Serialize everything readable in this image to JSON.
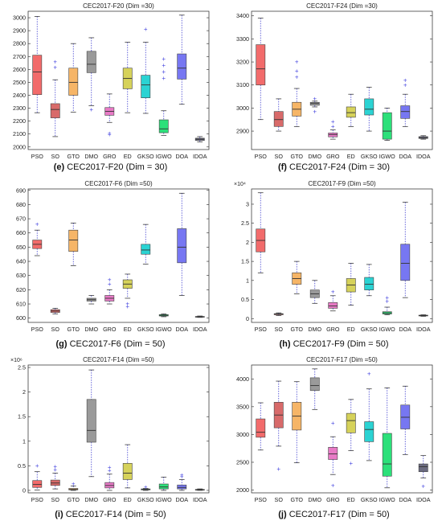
{
  "chart_data": [
    {
      "type": "box",
      "title": "CEC2017-F20 (Dim =30)",
      "caption": {
        "letter": "(e)",
        "text": "CEC2017-F20 (Dim = 30)"
      },
      "categories": [
        "PSO",
        "SO",
        "GTO",
        "DMO",
        "GRO",
        "ED",
        "GKSO",
        "IGWO",
        "DOA",
        "IDOA"
      ],
      "ylim": [
        1980,
        3050
      ],
      "yticks": [
        "2000",
        "2100",
        "2200",
        "2300",
        "2400",
        "2500",
        "2600",
        "2700",
        "2800",
        "2900",
        "3000"
      ],
      "ytick_values": [
        2000,
        2100,
        2200,
        2300,
        2400,
        2500,
        2600,
        2700,
        2800,
        2900,
        3000
      ],
      "exponent_label": "",
      "colors": [
        "#f26b6b",
        "#d86a6a",
        "#f6b567",
        "#9a9a9a",
        "#e87ac6",
        "#d6d25a",
        "#2bd3d3",
        "#2ce07a",
        "#7777f2",
        "#6b6b80"
      ],
      "boxes": [
        {
          "min": 2265,
          "q1": 2405,
          "median": 2580,
          "q3": 2710,
          "max": 3010,
          "outliers": []
        },
        {
          "min": 2080,
          "q1": 2225,
          "median": 2290,
          "q3": 2335,
          "max": 2520,
          "outliers": [
            2615,
            2660
          ]
        },
        {
          "min": 2270,
          "q1": 2400,
          "median": 2500,
          "q3": 2610,
          "max": 2800,
          "outliers": []
        },
        {
          "min": 2320,
          "q1": 2575,
          "median": 2640,
          "q3": 2740,
          "max": 2845,
          "outliers": [
            2290
          ]
        },
        {
          "min": 2190,
          "q1": 2245,
          "median": 2275,
          "q3": 2305,
          "max": 2410,
          "outliers": [
            2105,
            2095
          ]
        },
        {
          "min": 2265,
          "q1": 2450,
          "median": 2530,
          "q3": 2610,
          "max": 2810,
          "outliers": []
        },
        {
          "min": 2260,
          "q1": 2380,
          "median": 2480,
          "q3": 2555,
          "max": 2810,
          "outliers": [
            2910
          ]
        },
        {
          "min": 2090,
          "q1": 2110,
          "median": 2140,
          "q3": 2210,
          "max": 2280,
          "outliers": [
            2530,
            2580,
            2630,
            2680
          ]
        },
        {
          "min": 2330,
          "q1": 2525,
          "median": 2610,
          "q3": 2720,
          "max": 3020,
          "outliers": []
        },
        {
          "min": 2040,
          "q1": 2050,
          "median": 2060,
          "q3": 2068,
          "max": 2080,
          "outliers": []
        }
      ]
    },
    {
      "type": "box",
      "title": "CEC2017-F24 (Dim =30)",
      "caption": {
        "letter": "(f)",
        "text": "CEC2017-F24 (Dim = 30)"
      },
      "categories": [
        "PSO",
        "SO",
        "GTO",
        "DMO",
        "GRO",
        "ED",
        "GKSO",
        "IGWO",
        "DOA",
        "IDOA"
      ],
      "ylim": [
        2820,
        3420
      ],
      "yticks": [
        "2900",
        "3000",
        "3100",
        "3200",
        "3300",
        "3400"
      ],
      "ytick_values": [
        2900,
        3000,
        3100,
        3200,
        3300,
        3400
      ],
      "exponent_label": "",
      "colors": [
        "#f26b6b",
        "#d86a6a",
        "#f6b567",
        "#9a9a9a",
        "#e87ac6",
        "#d6d25a",
        "#2bd3d3",
        "#2ce07a",
        "#7777f2",
        "#6b6b80"
      ],
      "boxes": [
        {
          "min": 2950,
          "q1": 3100,
          "median": 3170,
          "q3": 3275,
          "max": 3390,
          "outliers": []
        },
        {
          "min": 2900,
          "q1": 2920,
          "median": 2950,
          "q3": 2985,
          "max": 3040,
          "outliers": []
        },
        {
          "min": 2920,
          "q1": 2965,
          "median": 2995,
          "q3": 3025,
          "max": 3085,
          "outliers": [
            3135,
            3160,
            3200
          ]
        },
        {
          "min": 3005,
          "q1": 3012,
          "median": 3020,
          "q3": 3025,
          "max": 3030,
          "outliers": [
            2985,
            3040
          ]
        },
        {
          "min": 2865,
          "q1": 2875,
          "median": 2885,
          "q3": 2892,
          "max": 2905,
          "outliers": [
            2920,
            2940
          ]
        },
        {
          "min": 2920,
          "q1": 2960,
          "median": 2980,
          "q3": 3005,
          "max": 3060,
          "outliers": []
        },
        {
          "min": 2900,
          "q1": 2970,
          "median": 2995,
          "q3": 3040,
          "max": 3090,
          "outliers": []
        },
        {
          "min": 2860,
          "q1": 2865,
          "median": 2900,
          "q3": 2980,
          "max": 3000,
          "outliers": []
        },
        {
          "min": 2920,
          "q1": 2955,
          "median": 2985,
          "q3": 3010,
          "max": 3060,
          "outliers": [
            3100,
            3120
          ]
        },
        {
          "min": 2865,
          "q1": 2868,
          "median": 2872,
          "q3": 2876,
          "max": 2880,
          "outliers": []
        }
      ]
    },
    {
      "type": "box",
      "title": "CEC2017-F6 (Dim =50)",
      "caption": {
        "letter": "(g)",
        "text": "CEC2017-F6 (Dim = 50)"
      },
      "categories": [
        "PSO",
        "SO",
        "GTO",
        "DMO",
        "GRO",
        "ED",
        "GKSO",
        "IGWO",
        "DOA",
        "IDOA"
      ],
      "ylim": [
        597,
        691
      ],
      "yticks": [
        "600",
        "610",
        "620",
        "630",
        "640",
        "650",
        "660",
        "670",
        "680",
        "690"
      ],
      "ytick_values": [
        600,
        610,
        620,
        630,
        640,
        650,
        660,
        670,
        680,
        690
      ],
      "exponent_label": "",
      "colors": [
        "#f26b6b",
        "#d86a6a",
        "#f6b567",
        "#9a9a9a",
        "#e87ac6",
        "#d6d25a",
        "#2bd3d3",
        "#2ce07a",
        "#7777f2",
        "#6b6b80"
      ],
      "boxes": [
        {
          "min": 644,
          "q1": 649,
          "median": 652,
          "q3": 655,
          "max": 662,
          "outliers": [
            666
          ]
        },
        {
          "min": 603,
          "q1": 604,
          "median": 605,
          "q3": 606,
          "max": 607,
          "outliers": []
        },
        {
          "min": 637,
          "q1": 647,
          "median": 655,
          "q3": 662,
          "max": 667,
          "outliers": []
        },
        {
          "min": 610,
          "q1": 612,
          "median": 613,
          "q3": 614,
          "max": 616,
          "outliers": []
        },
        {
          "min": 610,
          "q1": 612,
          "median": 614,
          "q3": 616,
          "max": 620,
          "outliers": [
            624,
            627
          ]
        },
        {
          "min": 614,
          "q1": 621,
          "median": 624,
          "q3": 627,
          "max": 631,
          "outliers": [
            610,
            608
          ]
        },
        {
          "min": 638,
          "q1": 645,
          "median": 648,
          "q3": 652,
          "max": 666,
          "outliers": []
        },
        {
          "min": 601,
          "q1": 601.5,
          "median": 602,
          "q3": 602.5,
          "max": 603,
          "outliers": []
        },
        {
          "min": 616,
          "q1": 639,
          "median": 650,
          "q3": 663,
          "max": 688,
          "outliers": []
        },
        {
          "min": 600.5,
          "q1": 600.8,
          "median": 601,
          "q3": 601.2,
          "max": 601.5,
          "outliers": []
        }
      ]
    },
    {
      "type": "box",
      "title": "CEC2017-F9 (Dim =50)",
      "caption": {
        "letter": "(h)",
        "text": "CEC2017-F9 (Dim = 50)"
      },
      "categories": [
        "PSO",
        "SO",
        "GTO",
        "DMO",
        "GRO",
        "ED",
        "GKSO",
        "IGWO",
        "DOA",
        "IDOA"
      ],
      "ylim": [
        -0.1,
        3.4
      ],
      "yticks": [
        "0",
        "0.5",
        "1",
        "1.5",
        "2",
        "2.5",
        "3"
      ],
      "ytick_values": [
        0,
        0.5,
        1,
        1.5,
        2,
        2.5,
        3
      ],
      "exponent_label": "×10⁴",
      "colors": [
        "#f26b6b",
        "#d86a6a",
        "#f6b567",
        "#9a9a9a",
        "#e87ac6",
        "#d6d25a",
        "#2bd3d3",
        "#2ce07a",
        "#7777f2",
        "#6b6b80"
      ],
      "boxes": [
        {
          "min": 1.2,
          "q1": 1.75,
          "median": 2.05,
          "q3": 2.35,
          "max": 3.3,
          "outliers": []
        },
        {
          "min": 0.08,
          "q1": 0.1,
          "median": 0.12,
          "q3": 0.13,
          "max": 0.15,
          "outliers": []
        },
        {
          "min": 0.65,
          "q1": 0.9,
          "median": 1.05,
          "q3": 1.2,
          "max": 1.5,
          "outliers": []
        },
        {
          "min": 0.4,
          "q1": 0.55,
          "median": 0.65,
          "q3": 0.75,
          "max": 1.0,
          "outliers": []
        },
        {
          "min": 0.2,
          "q1": 0.27,
          "median": 0.33,
          "q3": 0.42,
          "max": 0.6,
          "outliers": [
            0.7
          ]
        },
        {
          "min": 0.35,
          "q1": 0.7,
          "median": 0.88,
          "q3": 1.05,
          "max": 1.45,
          "outliers": []
        },
        {
          "min": 0.6,
          "q1": 0.75,
          "median": 0.9,
          "q3": 1.08,
          "max": 1.42,
          "outliers": []
        },
        {
          "min": 0.1,
          "q1": 0.12,
          "median": 0.15,
          "q3": 0.18,
          "max": 0.3,
          "outliers": [
            0.45,
            0.55
          ]
        },
        {
          "min": 0.55,
          "q1": 1.0,
          "median": 1.45,
          "q3": 1.95,
          "max": 3.05,
          "outliers": []
        },
        {
          "min": 0.06,
          "q1": 0.07,
          "median": 0.08,
          "q3": 0.09,
          "max": 0.1,
          "outliers": []
        }
      ]
    },
    {
      "type": "box",
      "title": "CEC2017-F14 (Dim =50)",
      "caption": {
        "letter": "(i)",
        "text": "CEC2017-F14 (Dim = 50)"
      },
      "categories": [
        "PSO",
        "SO",
        "GTO",
        "DMO",
        "GRO",
        "ED",
        "GKSO",
        "IGWO",
        "DOA",
        "IDOA"
      ],
      "ylim": [
        -0.05,
        2.55
      ],
      "yticks": [
        "0",
        "0.5",
        "1",
        "1.5",
        "2",
        "2.5"
      ],
      "ytick_values": [
        0,
        0.5,
        1,
        1.5,
        2,
        2.5
      ],
      "exponent_label": "×10⁶",
      "colors": [
        "#f26b6b",
        "#d86a6a",
        "#f6b567",
        "#9a9a9a",
        "#e87ac6",
        "#d6d25a",
        "#2bd3d3",
        "#2ce07a",
        "#7777f2",
        "#6b6b80"
      ],
      "boxes": [
        {
          "min": 0.01,
          "q1": 0.06,
          "median": 0.12,
          "q3": 0.2,
          "max": 0.38,
          "outliers": [
            0.5
          ]
        },
        {
          "min": 0.03,
          "q1": 0.1,
          "median": 0.15,
          "q3": 0.21,
          "max": 0.35,
          "outliers": [
            0.42,
            0.48
          ]
        },
        {
          "min": 0.0,
          "q1": 0.01,
          "median": 0.02,
          "q3": 0.04,
          "max": 0.09,
          "outliers": [
            0.13
          ]
        },
        {
          "min": 0.28,
          "q1": 0.98,
          "median": 1.22,
          "q3": 1.85,
          "max": 2.45,
          "outliers": []
        },
        {
          "min": 0.0,
          "q1": 0.05,
          "median": 0.1,
          "q3": 0.16,
          "max": 0.33,
          "outliers": [
            0.4,
            0.47
          ]
        },
        {
          "min": 0.05,
          "q1": 0.22,
          "median": 0.35,
          "q3": 0.55,
          "max": 0.93,
          "outliers": []
        },
        {
          "min": 0.0,
          "q1": 0.01,
          "median": 0.02,
          "q3": 0.03,
          "max": 0.04,
          "outliers": [
            0.07
          ]
        },
        {
          "min": 0.0,
          "q1": 0.03,
          "median": 0.07,
          "q3": 0.13,
          "max": 0.27,
          "outliers": []
        },
        {
          "min": 0.0,
          "q1": 0.03,
          "median": 0.06,
          "q3": 0.11,
          "max": 0.22,
          "outliers": [
            0.28,
            0.31
          ]
        },
        {
          "min": 0.0,
          "q1": 0.01,
          "median": 0.015,
          "q3": 0.02,
          "max": 0.03,
          "outliers": []
        }
      ]
    },
    {
      "type": "box",
      "title": "CEC2017-F17 (Dim =50)",
      "caption": {
        "letter": "(j)",
        "text": "CEC2017-F17 (Dim = 50)"
      },
      "categories": [
        "PSO",
        "SO",
        "GTO",
        "DMO",
        "GRO",
        "ED",
        "GKSO",
        "IGWO",
        "DOA",
        "IDOA"
      ],
      "ylim": [
        1950,
        4250
      ],
      "yticks": [
        "2000",
        "2500",
        "3000",
        "3500",
        "4000"
      ],
      "ytick_values": [
        2000,
        2500,
        3000,
        3500,
        4000
      ],
      "exponent_label": "",
      "colors": [
        "#f26b6b",
        "#d86a6a",
        "#f6b567",
        "#9a9a9a",
        "#e87ac6",
        "#d6d25a",
        "#2bd3d3",
        "#2ce07a",
        "#7777f2",
        "#6b6b80"
      ],
      "boxes": [
        {
          "min": 2720,
          "q1": 2950,
          "median": 3040,
          "q3": 3280,
          "max": 3570,
          "outliers": []
        },
        {
          "min": 2790,
          "q1": 3120,
          "median": 3350,
          "q3": 3580,
          "max": 3960,
          "outliers": [
            2380
          ]
        },
        {
          "min": 2490,
          "q1": 3080,
          "median": 3330,
          "q3": 3580,
          "max": 3950,
          "outliers": []
        },
        {
          "min": 3450,
          "q1": 3790,
          "median": 3880,
          "q3": 4020,
          "max": 4180,
          "outliers": []
        },
        {
          "min": 2280,
          "q1": 2550,
          "median": 2650,
          "q3": 2770,
          "max": 2960,
          "outliers": [
            3200,
            2080
          ]
        },
        {
          "min": 2710,
          "q1": 3030,
          "median": 3250,
          "q3": 3380,
          "max": 3630,
          "outliers": [
            2480
          ]
        },
        {
          "min": 2530,
          "q1": 2870,
          "median": 3090,
          "q3": 3230,
          "max": 3820,
          "outliers": [
            4090
          ]
        },
        {
          "min": 2040,
          "q1": 2250,
          "median": 2470,
          "q3": 3020,
          "max": 3840,
          "outliers": []
        },
        {
          "min": 2640,
          "q1": 3100,
          "median": 3310,
          "q3": 3530,
          "max": 3870,
          "outliers": []
        },
        {
          "min": 2220,
          "q1": 2330,
          "median": 2420,
          "q3": 2470,
          "max": 2620,
          "outliers": [
            2070
          ]
        }
      ]
    }
  ]
}
